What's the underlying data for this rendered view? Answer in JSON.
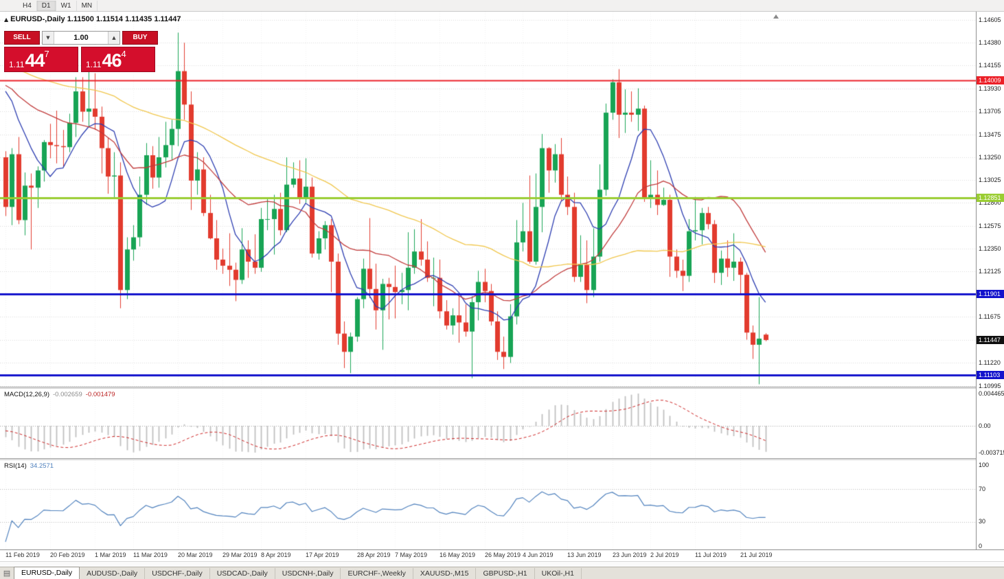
{
  "toolbar": {
    "timeframes": [
      "H4",
      "D1",
      "W1",
      "MN"
    ],
    "active": "D1"
  },
  "chart_header": {
    "symbol_title": "EURUSD-,Daily",
    "ohlc": "1.11500 1.11514 1.11435 1.11447"
  },
  "trade_panel": {
    "sell_label": "SELL",
    "buy_label": "BUY",
    "volume": "1.00",
    "sell_price": {
      "prefix": "1.11",
      "pips": "44",
      "pipette": "7"
    },
    "buy_price": {
      "prefix": "1.11",
      "pips": "46",
      "pipette": "4"
    }
  },
  "indicators": {
    "macd": {
      "name": "MACD(12,26,9)",
      "value": "-0.002659",
      "signal": "-0.001479",
      "axis": [
        "0.004465",
        "0.00",
        "-0.003715"
      ]
    },
    "rsi": {
      "name": "RSI(14)",
      "value": "34.2571",
      "axis": [
        "100",
        "70",
        "30",
        "0"
      ],
      "levels": [
        70,
        30
      ]
    }
  },
  "price_axis": {
    "labels": [
      "1.14605",
      "1.14380",
      "1.14155",
      "1.13930",
      "1.13705",
      "1.13475",
      "1.13250",
      "1.13025",
      "1.12800",
      "1.12575",
      "1.12350",
      "1.12125",
      "1.11675",
      "1.11220",
      "1.10995"
    ],
    "grid_extra": [
      1.119,
      1.1145
    ]
  },
  "time_axis": {
    "ticks": [
      {
        "label": "11 Feb 2019",
        "i": 0
      },
      {
        "label": "20 Feb 2019",
        "i": 7
      },
      {
        "label": "1 Mar 2019",
        "i": 14
      },
      {
        "label": "11 Mar 2019",
        "i": 20
      },
      {
        "label": "20 Mar 2019",
        "i": 27
      },
      {
        "label": "29 Mar 2019",
        "i": 34
      },
      {
        "label": "8 Apr 2019",
        "i": 40
      },
      {
        "label": "17 Apr 2019",
        "i": 47
      },
      {
        "label": "28 Apr 2019",
        "i": 55
      },
      {
        "label": "7 May 2019",
        "i": 61
      },
      {
        "label": "16 May 2019",
        "i": 68
      },
      {
        "label": "26 May 2019",
        "i": 75
      },
      {
        "label": "4 Jun 2019",
        "i": 81
      },
      {
        "label": "13 Jun 2019",
        "i": 88
      },
      {
        "label": "23 Jun 2019",
        "i": 95
      },
      {
        "label": "2 Jul 2019",
        "i": 101
      },
      {
        "label": "11 Jul 2019",
        "i": 108
      },
      {
        "label": "21 Jul 2019",
        "i": 115
      }
    ]
  },
  "bottom_tabs": [
    "EURUSD-,Daily",
    "AUDUSD-,Daily",
    "USDCHF-,Daily",
    "USDCAD-,Daily",
    "USDCNH-,Daily",
    "EURCHF-,Weekly",
    "XAUUSD-,M15",
    "GBPUSD-,H1",
    "UKOil-,H1"
  ],
  "chart_data": {
    "type": "candlestick",
    "symbol": "EURUSD-",
    "period": "Daily",
    "current_bar": {
      "open": 1.115,
      "high": 1.11514,
      "low": 1.11435,
      "close": 1.11447
    },
    "hlines": [
      {
        "price": 1.14009,
        "label": "1.14009",
        "color": "#ec2028",
        "width": 2
      },
      {
        "price": 1.12851,
        "label": "1.12851",
        "color": "#9acd32",
        "width": 3
      },
      {
        "price": 1.11901,
        "label": "1.11901",
        "color": "#1212cc",
        "width": 3
      },
      {
        "price": 1.11103,
        "label": "1.11103",
        "color": "#1212cc",
        "width": 3
      }
    ],
    "current_price_tag": {
      "price": 1.11447,
      "label": "1.11447",
      "bg": "#101010"
    },
    "moving_averages": [
      {
        "period": 8,
        "color": "#2b3cb0"
      },
      {
        "period": 21,
        "color": "#c03a3a"
      },
      {
        "period": 55,
        "color": "#f0c64b"
      }
    ],
    "candle_colors": {
      "up": "#18a455",
      "down": "#e23b2e"
    },
    "macd_params": {
      "fast": 12,
      "slow": 26,
      "signal": 9,
      "hist_color": "#bfbfbf",
      "signal_color": "#cc2222",
      "axis_max": 0.004465,
      "axis_min": -0.003715
    },
    "rsi_params": {
      "period": 14,
      "color": "#4f81bd",
      "levels": [
        70,
        30
      ]
    },
    "dates": [
      "2019.02.11",
      "2019.02.12",
      "2019.02.13",
      "2019.02.14",
      "2019.02.15",
      "2019.02.18",
      "2019.02.19",
      "2019.02.20",
      "2019.02.21",
      "2019.02.22",
      "2019.02.25",
      "2019.02.26",
      "2019.02.27",
      "2019.02.28",
      "2019.03.01",
      "2019.03.04",
      "2019.03.05",
      "2019.03.06",
      "2019.03.07",
      "2019.03.08",
      "2019.03.11",
      "2019.03.12",
      "2019.03.13",
      "2019.03.14",
      "2019.03.15",
      "2019.03.18",
      "2019.03.19",
      "2019.03.20",
      "2019.03.21",
      "2019.03.22",
      "2019.03.25",
      "2019.03.26",
      "2019.03.27",
      "2019.03.28",
      "2019.03.29",
      "2019.04.01",
      "2019.04.02",
      "2019.04.03",
      "2019.04.04",
      "2019.04.05",
      "2019.04.08",
      "2019.04.09",
      "2019.04.10",
      "2019.04.11",
      "2019.04.12",
      "2019.04.15",
      "2019.04.16",
      "2019.04.17",
      "2019.04.18",
      "2019.04.19",
      "2019.04.22",
      "2019.04.23",
      "2019.04.24",
      "2019.04.25",
      "2019.04.26",
      "2019.04.29",
      "2019.04.30",
      "2019.05.01",
      "2019.05.02",
      "2019.05.03",
      "2019.05.06",
      "2019.05.07",
      "2019.05.08",
      "2019.05.09",
      "2019.05.10",
      "2019.05.13",
      "2019.05.14",
      "2019.05.15",
      "2019.05.16",
      "2019.05.17",
      "2019.05.20",
      "2019.05.21",
      "2019.05.22",
      "2019.05.23",
      "2019.05.24",
      "2019.05.27",
      "2019.05.28",
      "2019.05.29",
      "2019.05.30",
      "2019.05.31",
      "2019.06.03",
      "2019.06.04",
      "2019.06.05",
      "2019.06.06",
      "2019.06.07",
      "2019.06.10",
      "2019.06.11",
      "2019.06.12",
      "2019.06.13",
      "2019.06.14",
      "2019.06.17",
      "2019.06.18",
      "2019.06.19",
      "2019.06.20",
      "2019.06.21",
      "2019.06.24",
      "2019.06.25",
      "2019.06.26",
      "2019.06.27",
      "2019.06.28",
      "2019.07.01",
      "2019.07.02",
      "2019.07.03",
      "2019.07.04",
      "2019.07.05",
      "2019.07.08",
      "2019.07.09",
      "2019.07.10",
      "2019.07.11",
      "2019.07.12",
      "2019.07.15",
      "2019.07.16",
      "2019.07.17",
      "2019.07.18",
      "2019.07.19",
      "2019.07.22",
      "2019.07.23",
      "2019.07.24",
      "2019.07.25",
      "2019.07.26"
    ],
    "ohlc": [
      [
        1.1325,
        1.1331,
        1.1267,
        1.1276
      ],
      [
        1.1276,
        1.1334,
        1.1258,
        1.1328
      ],
      [
        1.1328,
        1.1345,
        1.1259,
        1.1263
      ],
      [
        1.1263,
        1.131,
        1.1248,
        1.1297
      ],
      [
        1.1297,
        1.1309,
        1.1234,
        1.1295
      ],
      [
        1.1295,
        1.1316,
        1.1275,
        1.1312
      ],
      [
        1.1312,
        1.1342,
        1.1301,
        1.134
      ],
      [
        1.134,
        1.1358,
        1.1324,
        1.1337
      ],
      [
        1.1337,
        1.1371,
        1.1319,
        1.1336
      ],
      [
        1.1336,
        1.1352,
        1.1315,
        1.1335
      ],
      [
        1.1335,
        1.1368,
        1.133,
        1.1359
      ],
      [
        1.1359,
        1.1404,
        1.1345,
        1.139
      ],
      [
        1.139,
        1.1404,
        1.136,
        1.137
      ],
      [
        1.137,
        1.142,
        1.1355,
        1.1373
      ],
      [
        1.1373,
        1.1408,
        1.1352,
        1.1365
      ],
      [
        1.1365,
        1.1375,
        1.1309,
        1.1334
      ],
      [
        1.1334,
        1.1344,
        1.1289,
        1.1306
      ],
      [
        1.1306,
        1.133,
        1.1285,
        1.1307
      ],
      [
        1.1307,
        1.132,
        1.1176,
        1.1194
      ],
      [
        1.1194,
        1.1246,
        1.1185,
        1.1234
      ],
      [
        1.1234,
        1.1258,
        1.1223,
        1.1246
      ],
      [
        1.1246,
        1.1306,
        1.1237,
        1.1288
      ],
      [
        1.1288,
        1.1339,
        1.1278,
        1.1327
      ],
      [
        1.1327,
        1.1336,
        1.1294,
        1.1305
      ],
      [
        1.1305,
        1.1345,
        1.1295,
        1.1325
      ],
      [
        1.1325,
        1.136,
        1.1315,
        1.1337
      ],
      [
        1.1337,
        1.1362,
        1.1322,
        1.1353
      ],
      [
        1.1353,
        1.1448,
        1.1336,
        1.141
      ],
      [
        1.141,
        1.1438,
        1.1362,
        1.1377
      ],
      [
        1.1377,
        1.139,
        1.1273,
        1.1302
      ],
      [
        1.1302,
        1.133,
        1.1288,
        1.1313
      ],
      [
        1.1313,
        1.1325,
        1.1267,
        1.127
      ],
      [
        1.127,
        1.1288,
        1.1244,
        1.1245
      ],
      [
        1.1245,
        1.1263,
        1.1214,
        1.1224
      ],
      [
        1.1224,
        1.1235,
        1.121,
        1.1218
      ],
      [
        1.1218,
        1.125,
        1.1198,
        1.1214
      ],
      [
        1.1214,
        1.1221,
        1.1183,
        1.1204
      ],
      [
        1.1204,
        1.1255,
        1.12,
        1.1234
      ],
      [
        1.1234,
        1.1243,
        1.1206,
        1.1222
      ],
      [
        1.1222,
        1.1249,
        1.121,
        1.1216
      ],
      [
        1.1216,
        1.1275,
        1.1212,
        1.1264
      ],
      [
        1.1264,
        1.1284,
        1.1253,
        1.1264
      ],
      [
        1.1264,
        1.1288,
        1.1229,
        1.1274
      ],
      [
        1.1274,
        1.129,
        1.1248,
        1.1253
      ],
      [
        1.1253,
        1.1325,
        1.1251,
        1.1298
      ],
      [
        1.1298,
        1.132,
        1.1295,
        1.1304
      ],
      [
        1.1304,
        1.1322,
        1.1279,
        1.1284
      ],
      [
        1.1284,
        1.1324,
        1.128,
        1.1296
      ],
      [
        1.1296,
        1.1305,
        1.1226,
        1.123
      ],
      [
        1.123,
        1.1252,
        1.1224,
        1.1245
      ],
      [
        1.1245,
        1.1262,
        1.1234,
        1.1258
      ],
      [
        1.1258,
        1.1264,
        1.1192,
        1.1222
      ],
      [
        1.1222,
        1.123,
        1.114,
        1.1151
      ],
      [
        1.1151,
        1.1163,
        1.1117,
        1.1133
      ],
      [
        1.1133,
        1.1152,
        1.1112,
        1.1148
      ],
      [
        1.1148,
        1.1187,
        1.1143,
        1.1185
      ],
      [
        1.1185,
        1.1225,
        1.1176,
        1.1215
      ],
      [
        1.1215,
        1.1265,
        1.1186,
        1.1195
      ],
      [
        1.1195,
        1.122,
        1.1155,
        1.1174
      ],
      [
        1.1174,
        1.1205,
        1.1135,
        1.12
      ],
      [
        1.12,
        1.1206,
        1.1165,
        1.1197
      ],
      [
        1.1197,
        1.1218,
        1.1166,
        1.1192
      ],
      [
        1.1192,
        1.1211,
        1.118,
        1.1194
      ],
      [
        1.1194,
        1.1251,
        1.1174,
        1.1216
      ],
      [
        1.1216,
        1.1254,
        1.121,
        1.1232
      ],
      [
        1.1232,
        1.1264,
        1.1218,
        1.1224
      ],
      [
        1.1224,
        1.1242,
        1.1202,
        1.1206
      ],
      [
        1.1206,
        1.1226,
        1.1178,
        1.1206
      ],
      [
        1.1206,
        1.1224,
        1.1166,
        1.1173
      ],
      [
        1.1173,
        1.1184,
        1.1155,
        1.1159
      ],
      [
        1.1159,
        1.1176,
        1.115,
        1.1169
      ],
      [
        1.1169,
        1.1188,
        1.1142,
        1.1162
      ],
      [
        1.1162,
        1.118,
        1.1148,
        1.1153
      ],
      [
        1.1153,
        1.1188,
        1.1107,
        1.1182
      ],
      [
        1.1182,
        1.1213,
        1.1164,
        1.1202
      ],
      [
        1.1202,
        1.1215,
        1.1182,
        1.1193
      ],
      [
        1.1193,
        1.12,
        1.1159,
        1.1163
      ],
      [
        1.1163,
        1.1173,
        1.1125,
        1.1133
      ],
      [
        1.1133,
        1.1148,
        1.1116,
        1.1128
      ],
      [
        1.1128,
        1.118,
        1.1122,
        1.1168
      ],
      [
        1.1168,
        1.1263,
        1.116,
        1.1241
      ],
      [
        1.1241,
        1.128,
        1.1232,
        1.1252
      ],
      [
        1.1252,
        1.1307,
        1.122,
        1.1222
      ],
      [
        1.1222,
        1.1309,
        1.1219,
        1.1276
      ],
      [
        1.1276,
        1.1348,
        1.1251,
        1.1334
      ],
      [
        1.1334,
        1.1335,
        1.129,
        1.1312
      ],
      [
        1.1312,
        1.1338,
        1.13,
        1.1328
      ],
      [
        1.1328,
        1.1344,
        1.1282,
        1.1288
      ],
      [
        1.1288,
        1.1306,
        1.1268,
        1.1276
      ],
      [
        1.1276,
        1.129,
        1.1202,
        1.1207
      ],
      [
        1.1207,
        1.1248,
        1.1202,
        1.1219
      ],
      [
        1.1219,
        1.1243,
        1.1181,
        1.1194
      ],
      [
        1.1194,
        1.1255,
        1.1187,
        1.1227
      ],
      [
        1.1227,
        1.1318,
        1.1222,
        1.1293
      ],
      [
        1.1293,
        1.1378,
        1.1287,
        1.1369
      ],
      [
        1.1369,
        1.1402,
        1.1362,
        1.1399
      ],
      [
        1.1399,
        1.1412,
        1.1344,
        1.1367
      ],
      [
        1.1367,
        1.1392,
        1.1349,
        1.1369
      ],
      [
        1.1369,
        1.139,
        1.136,
        1.1367
      ],
      [
        1.1367,
        1.1393,
        1.1351,
        1.1373
      ],
      [
        1.1373,
        1.1376,
        1.1281,
        1.1285
      ],
      [
        1.1285,
        1.1322,
        1.1275,
        1.1288
      ],
      [
        1.1288,
        1.1312,
        1.1268,
        1.1278
      ],
      [
        1.1278,
        1.1295,
        1.1277,
        1.1283
      ],
      [
        1.1283,
        1.1288,
        1.1207,
        1.1227
      ],
      [
        1.1227,
        1.1234,
        1.1206,
        1.1213
      ],
      [
        1.1213,
        1.1224,
        1.1193,
        1.1208
      ],
      [
        1.1208,
        1.1264,
        1.1202,
        1.1252
      ],
      [
        1.1252,
        1.1286,
        1.1243,
        1.1253
      ],
      [
        1.1253,
        1.1275,
        1.1239,
        1.127
      ],
      [
        1.127,
        1.1276,
        1.1254,
        1.1259
      ],
      [
        1.1259,
        1.1263,
        1.1201,
        1.1211
      ],
      [
        1.1211,
        1.1233,
        1.1199,
        1.1225
      ],
      [
        1.1225,
        1.1243,
        1.1207,
        1.1216
      ],
      [
        1.1216,
        1.125,
        1.1203,
        1.1222
      ],
      [
        1.1222,
        1.1226,
        1.1189,
        1.1209
      ],
      [
        1.1209,
        1.1211,
        1.1145,
        1.1152
      ],
      [
        1.1152,
        1.1159,
        1.1126,
        1.114
      ],
      [
        1.114,
        1.1187,
        1.1101,
        1.1146
      ],
      [
        1.115,
        1.11514,
        1.11435,
        1.11447
      ]
    ]
  }
}
